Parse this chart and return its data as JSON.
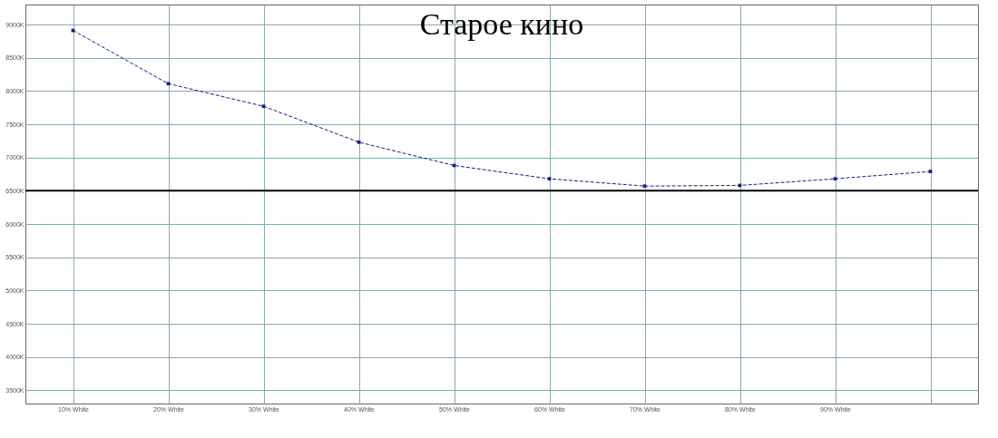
{
  "chart_data": {
    "type": "line",
    "title": "Старое кино",
    "categories": [
      "10% White",
      "20% White",
      "30% White",
      "40% White",
      "50% White",
      "60% White",
      "70% White",
      "80% White",
      "90% White",
      null
    ],
    "series": [
      {
        "color": "#1a1a8c",
        "values": [
          8910,
          8110,
          7770,
          7230,
          6880,
          6680,
          6570,
          6580,
          6680,
          6790
        ]
      }
    ],
    "ylim": [
      3300,
      9300
    ],
    "yticks": [
      {
        "value": 3500,
        "label": "3500K"
      },
      {
        "value": 4000,
        "label": "4000K"
      },
      {
        "value": 4500,
        "label": "4500K"
      },
      {
        "value": 5000,
        "label": "5000K"
      },
      {
        "value": 5500,
        "label": "5500K"
      },
      {
        "value": 6000,
        "label": "6000K"
      },
      {
        "value": 6500,
        "label": "6500K"
      },
      {
        "value": 7000,
        "label": "7000K"
      },
      {
        "value": 7500,
        "label": "7500K"
      },
      {
        "value": 8000,
        "label": "8000K"
      },
      {
        "value": 8500,
        "label": "8500K"
      },
      {
        "value": 9000,
        "label": "9000K"
      }
    ],
    "ref_lines": [
      {
        "axis": "y",
        "value": 6500,
        "color": "#000000"
      }
    ],
    "grid": true,
    "marker": "square",
    "line_style": "dashed"
  }
}
